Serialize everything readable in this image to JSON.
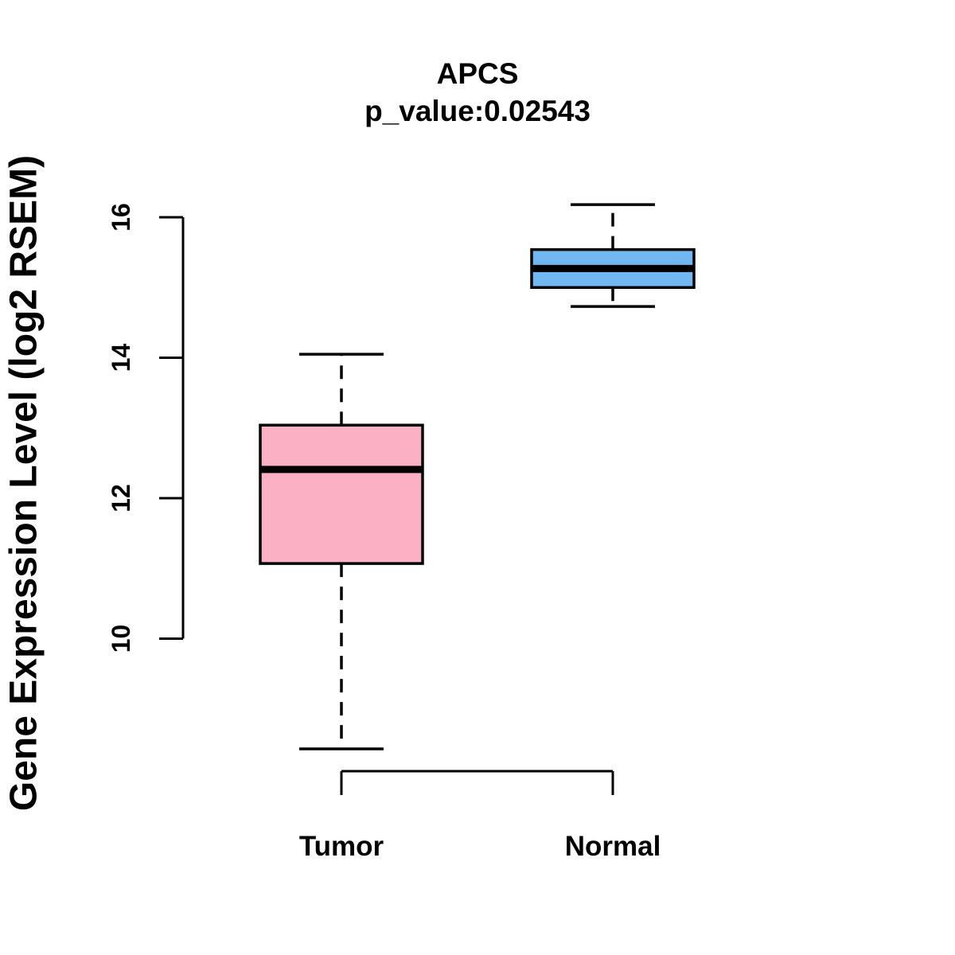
{
  "figure": {
    "title": "APCS",
    "subtitle": "p_value:0.02543"
  },
  "chart_data": {
    "type": "boxplot",
    "title": "APCS",
    "subtitle": "p_value:0.02543",
    "ylabel": "Gene Expression Level (log2 RSEM)",
    "categories": [
      "Tumor",
      "Normal"
    ],
    "yticks": [
      10,
      12,
      14,
      16
    ],
    "ylim": [
      8.0,
      16.5
    ],
    "grid": false,
    "legend_position": "none",
    "axis_color": "#000000",
    "text_color": "#000000",
    "series": [
      {
        "name": "Tumor",
        "box_color": "#FCB0C3",
        "border_color": "#000000",
        "median_color": "#000000",
        "stats": {
          "whisker_low": 8.43,
          "q1": 11.07,
          "median": 12.41,
          "q3": 13.04,
          "whisker_high": 14.05
        }
      },
      {
        "name": "Normal",
        "box_color": "#71B8F3",
        "border_color": "#000000",
        "median_color": "#000000",
        "stats": {
          "whisker_low": 14.73,
          "q1": 15.0,
          "median": 15.27,
          "q3": 15.54,
          "whisker_high": 16.18
        }
      }
    ]
  }
}
